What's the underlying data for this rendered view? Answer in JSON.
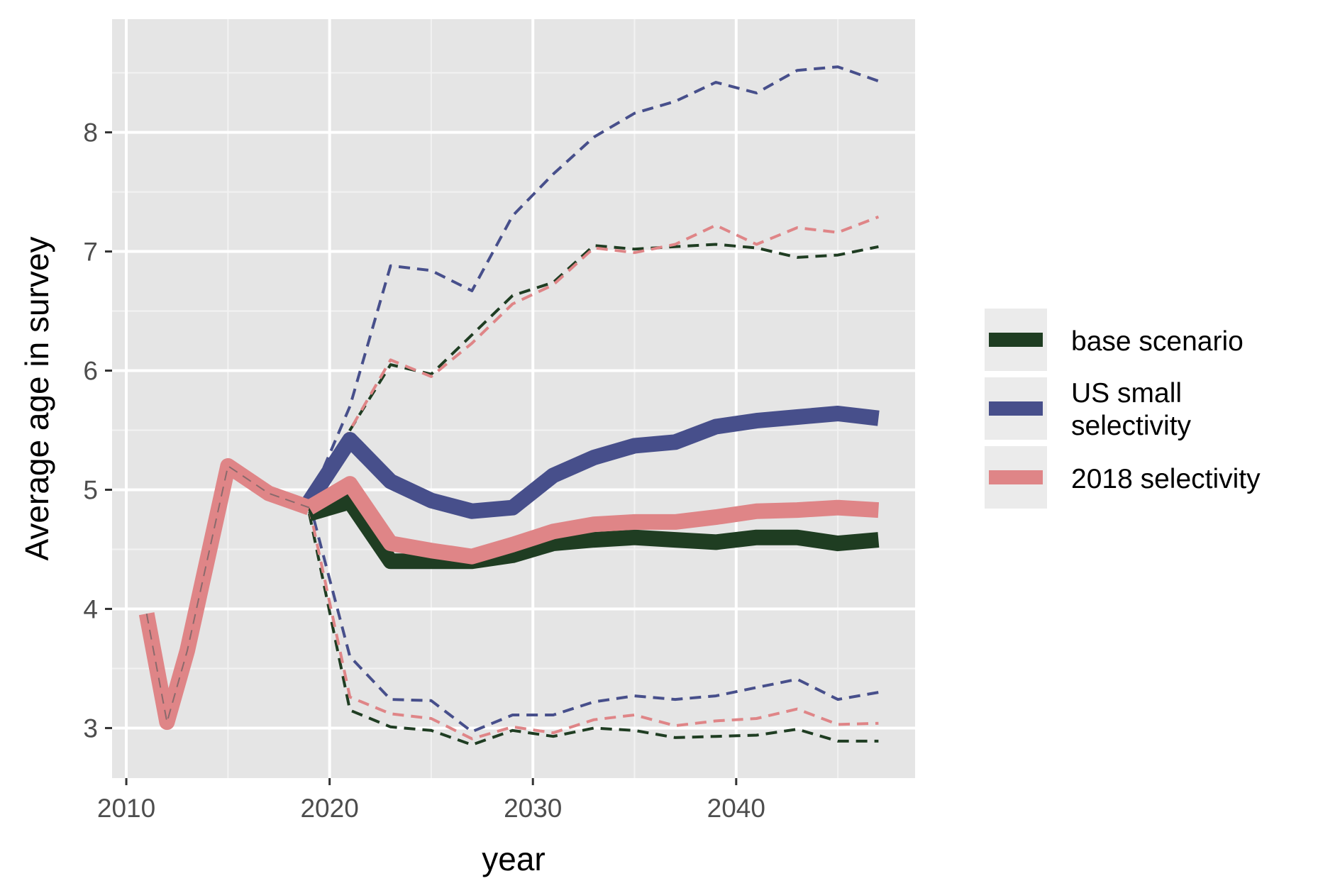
{
  "chart_data": {
    "type": "line",
    "xlabel": "year",
    "ylabel": "Average age in survey",
    "xlim": [
      2009.3,
      2048.8
    ],
    "ylim": [
      2.58,
      8.95
    ],
    "x_ticks": [
      2010,
      2020,
      2030,
      2040
    ],
    "y_ticks": [
      3,
      4,
      5,
      6,
      7,
      8
    ],
    "grid": true,
    "panel_background": "#e5e5e5",
    "legend_position": "right",
    "historical": {
      "x": [
        2011,
        2012,
        2013,
        2015,
        2017,
        2019
      ],
      "y": [
        3.96,
        3.05,
        3.65,
        5.2,
        4.97,
        4.85
      ],
      "color": "#df8587"
    },
    "series": [
      {
        "name": "base scenario",
        "color": "#1f3d22",
        "x": [
          2019,
          2021,
          2023,
          2025,
          2027,
          2029,
          2031,
          2033,
          2035,
          2037,
          2039,
          2041,
          2043,
          2045,
          2047
        ],
        "median": [
          4.8,
          4.9,
          4.4,
          4.4,
          4.4,
          4.45,
          4.55,
          4.58,
          4.6,
          4.58,
          4.56,
          4.6,
          4.6,
          4.55,
          4.58
        ],
        "upper": [
          4.8,
          5.5,
          6.05,
          5.97,
          6.3,
          6.63,
          6.74,
          7.05,
          7.02,
          7.04,
          7.06,
          7.03,
          6.95,
          6.97,
          7.04
        ],
        "lower": [
          4.8,
          3.15,
          3.01,
          2.98,
          2.86,
          2.98,
          2.93,
          3.0,
          2.98,
          2.92,
          2.93,
          2.94,
          2.99,
          2.89,
          2.89
        ]
      },
      {
        "name": "US small selectivity",
        "color": "#474f8b",
        "x": [
          2019,
          2021,
          2023,
          2025,
          2027,
          2029,
          2031,
          2033,
          2035,
          2037,
          2039,
          2041,
          2043,
          2045,
          2047
        ],
        "median": [
          4.9,
          5.42,
          5.07,
          4.91,
          4.82,
          4.85,
          5.12,
          5.27,
          5.37,
          5.4,
          5.53,
          5.58,
          5.61,
          5.64,
          5.6
        ],
        "upper": [
          4.9,
          5.7,
          6.88,
          6.84,
          6.67,
          7.3,
          7.65,
          7.96,
          8.16,
          8.26,
          8.42,
          8.33,
          8.52,
          8.55,
          8.43
        ],
        "lower": [
          4.9,
          3.6,
          3.24,
          3.23,
          2.97,
          3.11,
          3.11,
          3.22,
          3.27,
          3.24,
          3.27,
          3.34,
          3.41,
          3.24,
          3.3
        ]
      },
      {
        "name": "2018 selectivity",
        "color": "#df8587",
        "x": [
          2019,
          2021,
          2023,
          2025,
          2027,
          2029,
          2031,
          2033,
          2035,
          2037,
          2039,
          2041,
          2043,
          2045,
          2047
        ],
        "median": [
          4.85,
          5.05,
          4.55,
          4.49,
          4.44,
          4.54,
          4.65,
          4.71,
          4.73,
          4.73,
          4.77,
          4.82,
          4.83,
          4.85,
          4.83
        ],
        "upper": [
          4.85,
          5.5,
          6.09,
          5.95,
          6.23,
          6.56,
          6.72,
          7.03,
          6.99,
          7.06,
          7.22,
          7.06,
          7.2,
          7.16,
          7.29
        ],
        "lower": [
          4.85,
          3.26,
          3.12,
          3.08,
          2.91,
          3.01,
          2.96,
          3.07,
          3.11,
          3.02,
          3.06,
          3.08,
          3.16,
          3.03,
          3.04
        ]
      }
    ]
  }
}
